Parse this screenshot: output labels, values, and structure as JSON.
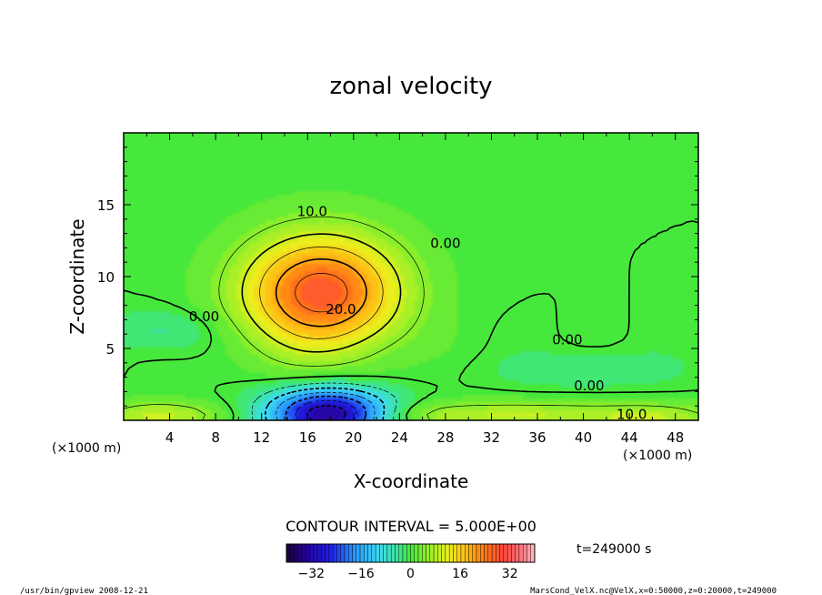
{
  "chart_data": {
    "type": "heatmap",
    "title": "zonal velocity",
    "xlabel": "X-coordinate",
    "ylabel": "Z-coordinate",
    "x_unit_label": "(×1000 m)",
    "y_unit_label": "(×1000 m)",
    "xlim": [
      0,
      50
    ],
    "ylim": [
      0,
      20
    ],
    "x_ticks": [
      "4",
      "8",
      "12",
      "16",
      "20",
      "24",
      "28",
      "32",
      "36",
      "40",
      "44",
      "48"
    ],
    "y_ticks": [
      "5",
      "10",
      "15"
    ],
    "contour_labels": [
      {
        "text": "10.0",
        "x": 16.4,
        "z": 14.2
      },
      {
        "text": "20.0",
        "x": 18.9,
        "z": 7.4
      },
      {
        "text": "0.00",
        "x": 28.0,
        "z": 12.0
      },
      {
        "text": "0.00",
        "x": 7.0,
        "z": 6.9
      },
      {
        "text": "0.00",
        "x": 38.6,
        "z": 5.3
      },
      {
        "text": "0.00",
        "x": 40.5,
        "z": 2.1
      },
      {
        "text": "10.0",
        "x": 44.2,
        "z": 0.1
      }
    ],
    "contour_interval_text": "CONTOUR INTERVAL = 5.000E+00",
    "colorbar": {
      "range": [
        -40,
        40
      ],
      "ticks": [
        "−32",
        "−16",
        "0",
        "16",
        "32"
      ],
      "tick_values": [
        -32,
        -16,
        0,
        16,
        32
      ]
    },
    "time_label": "t=249000 s",
    "features": [
      {
        "name": "upper jet maximum",
        "x": 16.5,
        "z": 8.6,
        "value": 27
      },
      {
        "name": "near-surface minimum",
        "x": 17.5,
        "z": 0.6,
        "value": -34
      }
    ]
  },
  "footer": {
    "left": "/usr/bin/gpview   2008-12-21",
    "right": "MarsCond_VelX.nc@VelX,x=0:50000,z=0:20000,t=249000"
  },
  "colors": {
    "positive_max": "#ff4a3a",
    "zero": "#3fe63a",
    "negative_max": "#1a007a"
  }
}
